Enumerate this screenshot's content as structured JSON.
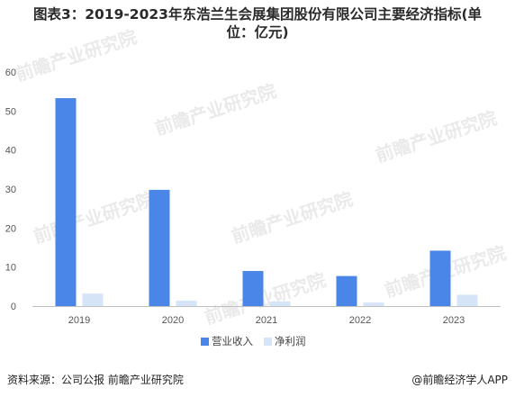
{
  "chart_data": {
    "type": "bar",
    "title": "图表3：2019-2023年东浩兰生会展集团股份有限公司主要经济指标(单位：亿元)",
    "categories": [
      "2019",
      "2020",
      "2021",
      "2022",
      "2023"
    ],
    "series": [
      {
        "name": "营业收入",
        "color": "#4a86e8",
        "values": [
          53.3,
          29.8,
          9.0,
          7.7,
          14.2
        ]
      },
      {
        "name": "净利润",
        "color": "#d6e4f7",
        "values": [
          3.2,
          1.4,
          1.2,
          0.9,
          2.9
        ]
      }
    ],
    "ylim": [
      0,
      60
    ],
    "yticks": [
      0,
      10,
      20,
      30,
      40,
      50,
      60
    ],
    "grid": false,
    "legend": "bottom"
  },
  "title_line1": "图表3：2019-2023年东浩兰生会展集团股份有限公司主要经济指标(单",
  "title_line2": "位：亿元)",
  "source": "资料来源：公司公报 前瞻产业研究院",
  "brand": "@前瞻经济学人APP",
  "watermark": "前瞻产业研究院"
}
